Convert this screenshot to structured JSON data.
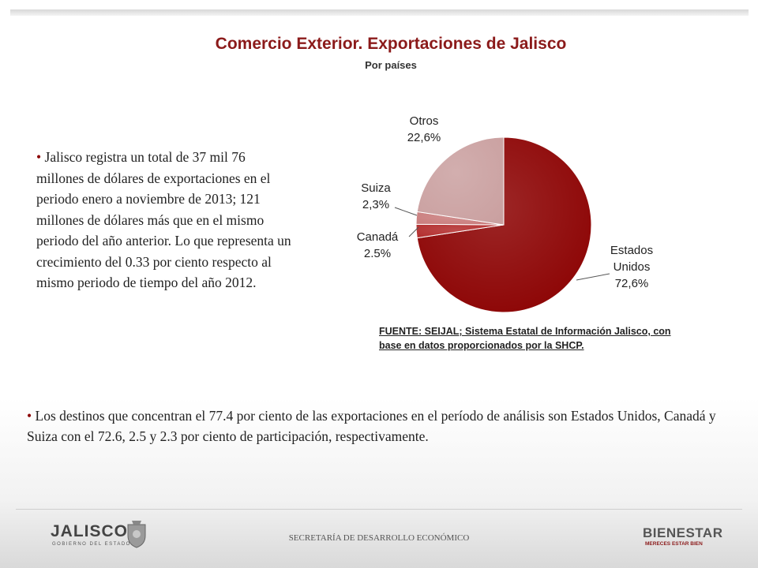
{
  "header": {
    "title": "Comercio Exterior. Exportaciones de Jalisco",
    "subtitle": "Por países"
  },
  "bullets": {
    "marker": "•",
    "left": "Jalisco registra un total de 37 mil 76 millones de dólares de exportaciones en el periodo enero a noviembre de 2013; 121 millones de dólares más que en el mismo periodo del año anterior. Lo que representa un crecimiento del 0.33 por ciento respecto al mismo periodo de tiempo del año 2012.",
    "bottom": "Los destinos que concentran el 77.4 por ciento de las exportaciones en el período de análisis son Estados Unidos, Canadá y Suiza con el 72.6, 2.5 y 2.3 por ciento de participación, respectivamente."
  },
  "chart_data": {
    "type": "pie",
    "title": "Comercio Exterior. Exportaciones de Jalisco",
    "subtitle": "Por países",
    "slices": [
      {
        "name": "Estados Unidos",
        "value": 72.6,
        "label_lines": [
          "Estados",
          "Unidos",
          "72,6%"
        ],
        "color": "#8b0000"
      },
      {
        "name": "Canadá",
        "value": 2.5,
        "label_lines": [
          "Canadá",
          "2.5%"
        ],
        "color": "#b22a2a"
      },
      {
        "name": "Suiza",
        "value": 2.3,
        "label_lines": [
          "Suiza",
          "2,3%"
        ],
        "color": "#c97b7b"
      },
      {
        "name": "Otros",
        "value": 22.6,
        "label_lines": [
          "Otros",
          "22,6%"
        ],
        "color": "#caa0a0"
      }
    ]
  },
  "source": "FUENTE: SEIJAL; Sistema Estatal de Información Jalisco, con base en datos proporcionados por la SHCP.",
  "footer": {
    "left_logo": "JALISCO",
    "left_logo_sub": "GOBIERNO DEL ESTADO",
    "center": "SECRETARÍA DE DESARROLLO ECONÓMICO",
    "right_logo": "BIENESTAR",
    "right_logo_sub": "MERECES ESTAR BIEN"
  },
  "colors": {
    "title": "#8b1a1a",
    "bullet_marker": "#8b0000"
  }
}
